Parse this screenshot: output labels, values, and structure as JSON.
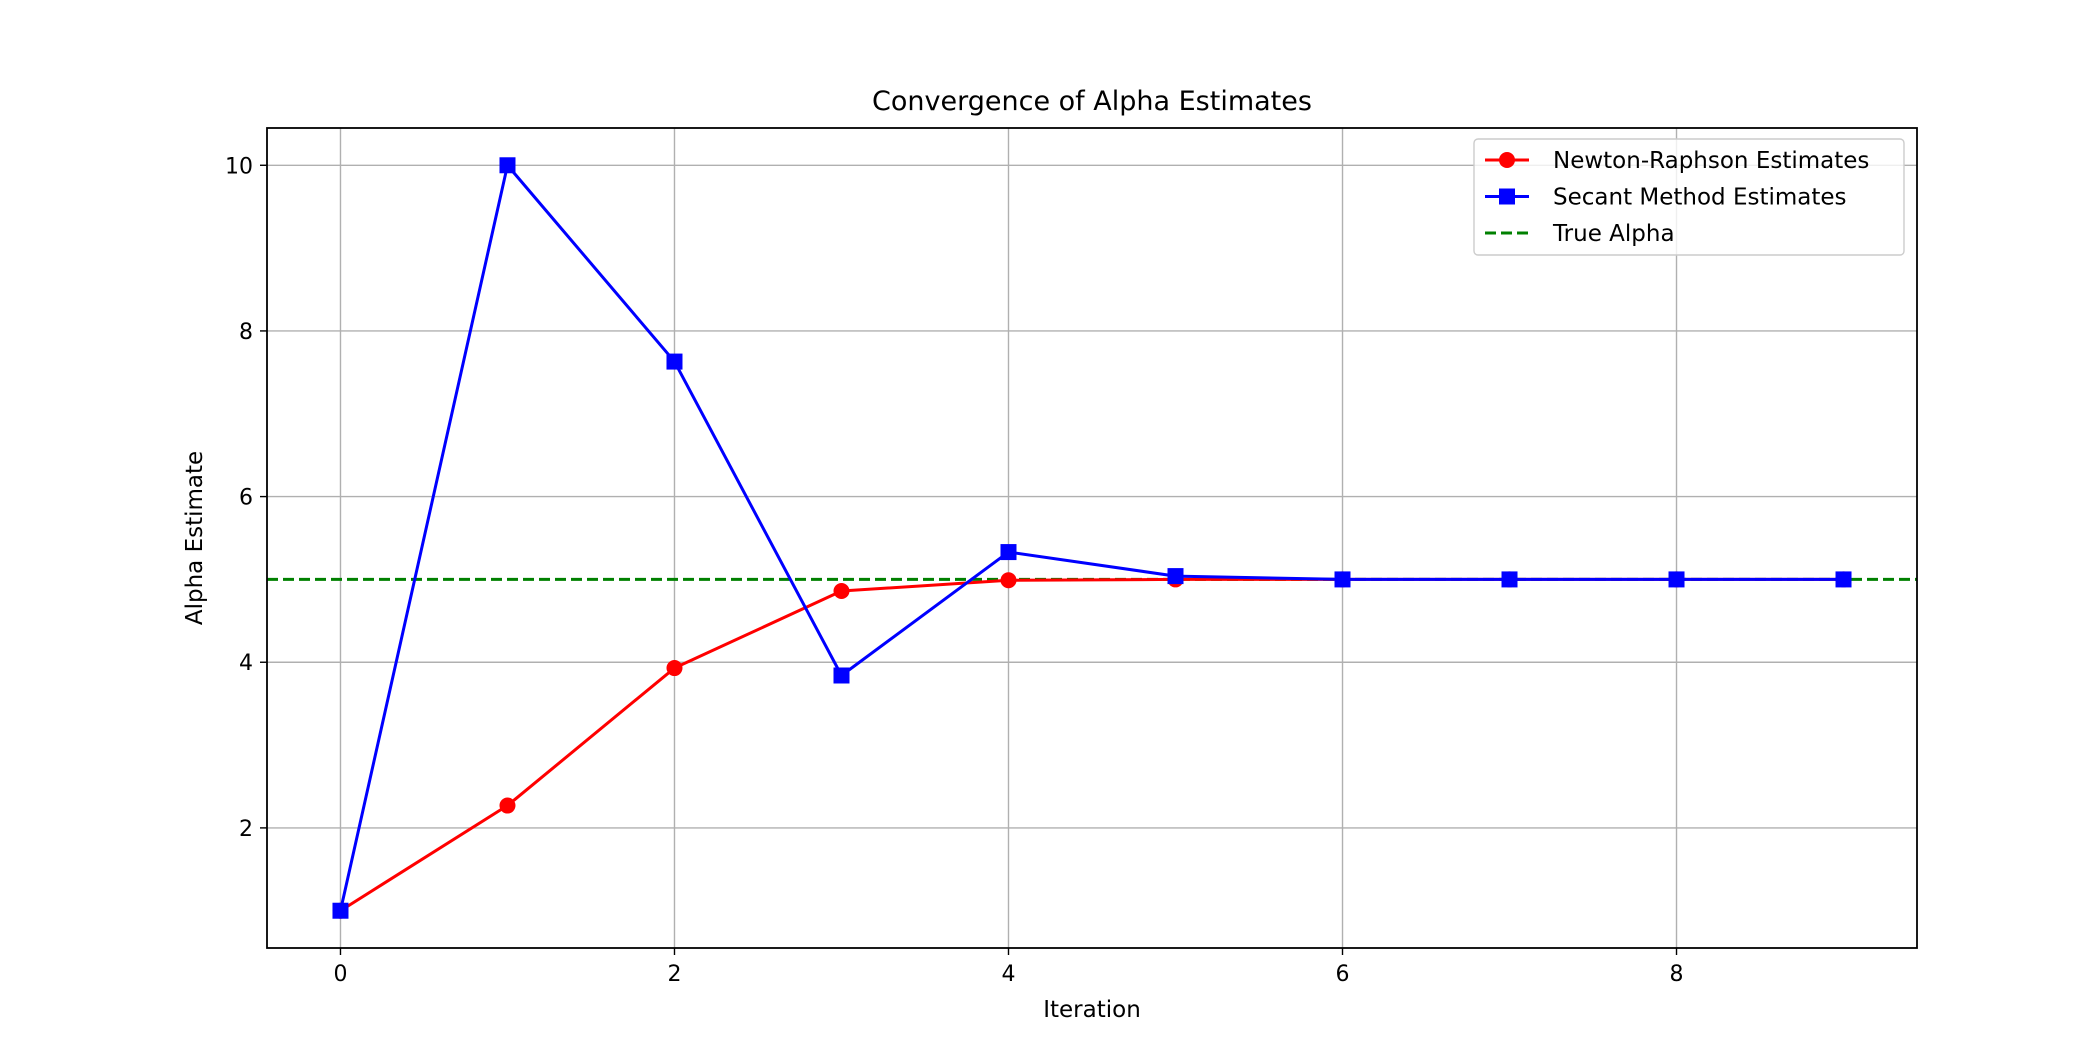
{
  "chart_data": {
    "type": "line",
    "title": "Convergence of Alpha Estimates",
    "xlabel": "Iteration",
    "ylabel": "Alpha Estimate",
    "xlim": [
      -0.44,
      9.44
    ],
    "ylim": [
      0.55,
      10.45
    ],
    "xticks": [
      0,
      2,
      4,
      6,
      8
    ],
    "yticks": [
      2,
      4,
      6,
      8,
      10
    ],
    "grid": true,
    "legend_position": "top-right",
    "series": [
      {
        "name": "Newton-Raphson Estimates",
        "color": "#ff0000",
        "marker": "circle",
        "style": "solid",
        "x": [
          0,
          1,
          2,
          3,
          4,
          5,
          6,
          7,
          8,
          9
        ],
        "values": [
          1.0,
          2.27,
          3.93,
          4.86,
          4.99,
          5.0,
          5.0,
          5.0,
          5.0,
          5.0
        ]
      },
      {
        "name": "Secant Method Estimates",
        "color": "#0000ff",
        "marker": "square",
        "style": "solid",
        "x": [
          0,
          1,
          2,
          3,
          4,
          5,
          6,
          7,
          8,
          9
        ],
        "values": [
          1.0,
          10.0,
          7.63,
          3.84,
          5.33,
          5.04,
          5.0,
          5.0,
          5.0,
          5.0
        ]
      }
    ],
    "reference_lines": [
      {
        "name": "True Alpha",
        "color": "#008000",
        "style": "dashed",
        "y": 5.0
      }
    ]
  }
}
